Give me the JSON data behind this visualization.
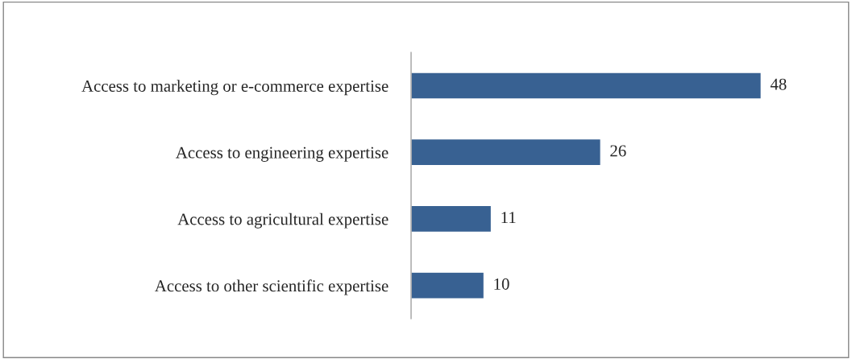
{
  "chart_data": {
    "type": "bar",
    "orientation": "horizontal",
    "categories": [
      "Access to marketing or e-commerce expertise",
      "Access to engineering expertise",
      "Access to agricultural expertise",
      "Access to other scientific expertise"
    ],
    "values": [
      48,
      26,
      11,
      10
    ],
    "color": "#386192",
    "data_labels": true,
    "grid": false,
    "legend": false
  }
}
